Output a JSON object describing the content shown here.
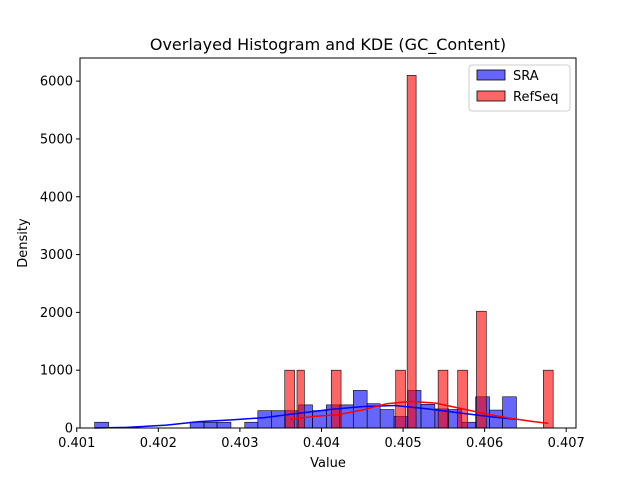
{
  "chart_data": {
    "type": "bar",
    "title": "Overlayed Histogram and KDE (GC_Content)",
    "xlabel": "Value",
    "ylabel": "Density",
    "xlim": [
      0.40104,
      0.40712
    ],
    "ylim": [
      0,
      6400
    ],
    "xticks": [
      0.401,
      0.402,
      0.403,
      0.404,
      0.405,
      0.406,
      0.407
    ],
    "xtick_labels": [
      "0.401",
      "0.402",
      "0.403",
      "0.404",
      "0.405",
      "0.406",
      "0.407"
    ],
    "yticks": [
      0,
      1000,
      2000,
      3000,
      4000,
      5000,
      6000
    ],
    "ytick_labels": [
      "0",
      "1000",
      "2000",
      "3000",
      "4000",
      "5000",
      "6000"
    ],
    "grid": false,
    "legend_position": "top-right",
    "series": [
      {
        "name": "SRA",
        "color": "#0000ff",
        "histogram": {
          "bin_edges": [
            0.40122,
            0.40139,
            0.40239,
            0.40256,
            0.40272,
            0.40289,
            0.40306,
            0.40322,
            0.40339,
            0.40356,
            0.40372,
            0.40389,
            0.40406,
            0.40422,
            0.40439,
            0.40456,
            0.40472,
            0.40489,
            0.40506,
            0.40522,
            0.40539,
            0.40556,
            0.40572,
            0.40589,
            0.40606,
            0.40622,
            0.40639
          ],
          "values": [
            100,
            0,
            100,
            100,
            100,
            0,
            100,
            300,
            300,
            300,
            400,
            300,
            400,
            400,
            650,
            420,
            320,
            200,
            650,
            410,
            330,
            320,
            100,
            540,
            310,
            540
          ]
        },
        "kde": {
          "x": [
            0.40122,
            0.4016,
            0.4021,
            0.4025,
            0.4029,
            0.4033,
            0.4037,
            0.4041,
            0.4045,
            0.4049,
            0.4053,
            0.4057,
            0.4061,
            0.40639
          ],
          "y": [
            0,
            10,
            50,
            110,
            140,
            180,
            250,
            320,
            370,
            390,
            330,
            260,
            190,
            150
          ]
        }
      },
      {
        "name": "RefSeq",
        "color": "#ff0000",
        "histogram": {
          "bin_edges": [
            0.40355,
            0.40367,
            0.4037,
            0.40379,
            0.40412,
            0.40424,
            0.40491,
            0.40503,
            0.40505,
            0.40516,
            0.40543,
            0.40555,
            0.40567,
            0.40579,
            0.4059,
            0.40602,
            0.40672,
            0.40684
          ],
          "values": [
            1000,
            0,
            1000,
            0,
            1000,
            0,
            1000,
            0,
            6100,
            0,
            1000,
            0,
            1000,
            0,
            2020,
            0,
            1000
          ]
        },
        "kde": {
          "x": [
            0.40361,
            0.4039,
            0.4042,
            0.4045,
            0.4048,
            0.4051,
            0.4054,
            0.4057,
            0.406,
            0.4063,
            0.4066,
            0.40678
          ],
          "y": [
            150,
            200,
            230,
            310,
            420,
            460,
            430,
            340,
            250,
            170,
            110,
            80
          ]
        }
      }
    ]
  }
}
